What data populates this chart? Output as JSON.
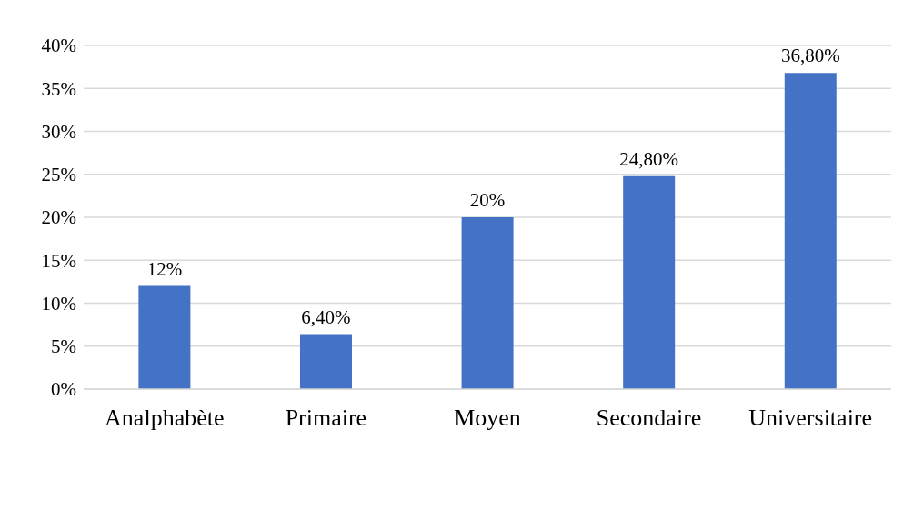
{
  "chart_data": {
    "type": "bar",
    "categories": [
      "Analphabète",
      "Primaire",
      "Moyen",
      "Secondaire",
      "Universitaire"
    ],
    "values": [
      12,
      6.4,
      20,
      24.8,
      36.8
    ],
    "value_labels": [
      "12%",
      "6,40%",
      "20%",
      "24,80%",
      "36,80%"
    ],
    "color": "#4472c4",
    "ylim": [
      0,
      40
    ],
    "yticks": [
      {
        "value": 0,
        "label": "0%"
      },
      {
        "value": 5,
        "label": "5%"
      },
      {
        "value": 10,
        "label": "10%"
      },
      {
        "value": 15,
        "label": "15%"
      },
      {
        "value": 20,
        "label": "20%"
      },
      {
        "value": 25,
        "label": "25%"
      },
      {
        "value": 30,
        "label": "30%"
      },
      {
        "value": 35,
        "label": "35%"
      },
      {
        "value": 40,
        "label": "40%"
      }
    ],
    "grid": "y"
  }
}
